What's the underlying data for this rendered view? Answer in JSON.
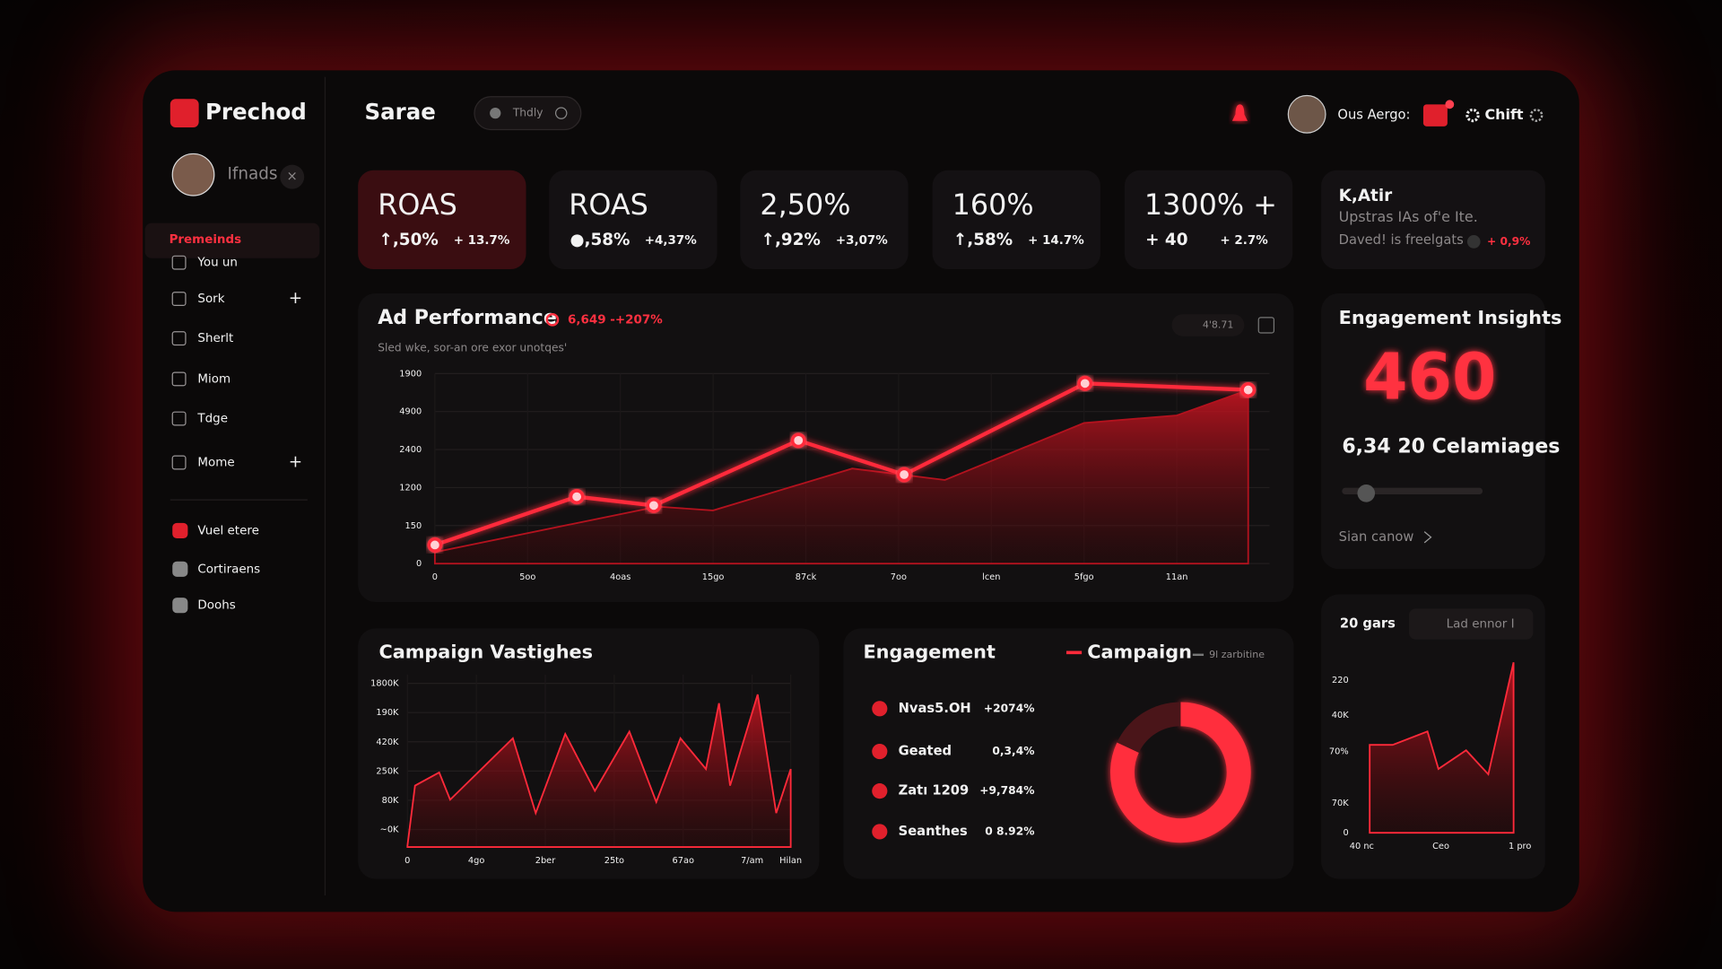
{
  "brand": {
    "name": "Prechod"
  },
  "user": {
    "name": "Ifnads"
  },
  "sidebar": {
    "section": "Premeinds",
    "items": [
      "You un",
      "Sork",
      "Sherlt",
      "Miom",
      "Tdge",
      "Mome"
    ],
    "secondary": [
      "Vuel etere",
      "Cortiraens",
      "Doohs"
    ]
  },
  "header": {
    "title": "Sarae",
    "search": "Thdly",
    "account": "Ous Aergo:",
    "switch": "Chift"
  },
  "kpis": [
    {
      "value": "ROAS",
      "change": "↑,50%",
      "delta": "+ 13.7%",
      "color": "#ff3344",
      "highlight": true
    },
    {
      "value": "ROAS",
      "change": "●,58%",
      "delta": "+4,37%",
      "color": "#2ecc71"
    },
    {
      "value": "2,50%",
      "change": "↑,92%",
      "delta": "+3,07%",
      "color": "#ff3344"
    },
    {
      "value": "160%",
      "change": "↑,58%",
      "delta": "+ 14.7%",
      "color": "#ff3344"
    },
    {
      "value": "1300% +",
      "change": "+ 40",
      "delta": "+ 2.7%",
      "color": "#2ecc71"
    }
  ],
  "kpi_note": {
    "title": "K,Atir",
    "line1": "Upstras IAs of'e Ite.",
    "line2": "Daved! is freelgats",
    "delta": "+ 0,9%"
  },
  "ad_performance": {
    "title": "Ad Performance",
    "stat": "6,649 -+207%",
    "subtitle": "Sled wke, sor-an ore exor unotqes'",
    "control": "4'8.71",
    "type": "line",
    "grid": true,
    "xlim": [
      0,
      9
    ],
    "xticks": [
      0,
      {
        "value": 1,
        "label": "5oo"
      },
      {
        "value": 2,
        "label": "4oas"
      },
      {
        "value": 3,
        "label": "15go"
      },
      {
        "value": 4,
        "label": "87ck"
      },
      {
        "value": 5,
        "label": "7oo"
      },
      {
        "value": 6,
        "label": "lcen"
      },
      {
        "value": 7,
        "label": "5fgo"
      },
      {
        "value": 8,
        "label": "11an"
      }
    ],
    "ylim": [
      0,
      5
    ],
    "yticks": [
      0,
      {
        "value": 1,
        "label": "150"
      },
      {
        "value": 2,
        "label": "1200"
      },
      {
        "value": 3,
        "label": "2400"
      },
      {
        "value": 4,
        "label": "4900"
      },
      {
        "value": 5,
        "label": "1900"
      }
    ],
    "series": [
      {
        "color": "#b3121e",
        "area": true,
        "x": [
          0,
          2.4,
          3,
          4.5,
          5.5,
          7,
          8,
          8.77
        ],
        "values": [
          0.3,
          1.5,
          1.4,
          2.5,
          2.2,
          3.7,
          3.9,
          4.57
        ]
      },
      {
        "color": "#ff2a3a",
        "markers": true,
        "x": [
          0,
          1.53,
          2.36,
          3.92,
          5.06,
          7.01,
          8.77
        ],
        "values": [
          0.49,
          1.76,
          1.53,
          3.24,
          2.34,
          4.74,
          4.57
        ]
      }
    ]
  },
  "insights": {
    "title": "Engagement Insights",
    "value": "460",
    "detail": "6,34 20 Celamiages",
    "link": "Sian canow"
  },
  "campaign": {
    "title": "Campaign Vastighes",
    "type": "area",
    "grid": true,
    "xlim": [
      0,
      5.56
    ],
    "xticks": [
      0,
      {
        "value": 1,
        "label": "4go"
      },
      {
        "value": 2,
        "label": "2ber"
      },
      {
        "value": 3,
        "label": "25to"
      },
      {
        "value": 4,
        "label": "67ao"
      },
      {
        "value": 5,
        "label": "7/am"
      },
      {
        "value": 5.56,
        "label": "Hilan"
      }
    ],
    "ylim": [
      -0.6,
      5.3
    ],
    "yticks": [
      {
        "value": 0,
        "label": "~0K"
      },
      {
        "value": 1,
        "label": "80K"
      },
      {
        "value": 2,
        "label": "250K"
      },
      {
        "value": 3,
        "label": "420K"
      },
      {
        "value": 4,
        "label": "190K"
      },
      {
        "value": 5,
        "label": "1800K"
      }
    ],
    "series": [
      {
        "color": "#ff2a3a",
        "area": true,
        "x": [
          0,
          0.11,
          0.46,
          0.62,
          1.53,
          1.86,
          2.29,
          2.72,
          3.22,
          3.61,
          3.96,
          4.33,
          4.52,
          4.68,
          5.08,
          5.35,
          5.56
        ],
        "values": [
          -0.56,
          1.5,
          1.95,
          1.02,
          3.12,
          0.56,
          3.27,
          1.32,
          3.35,
          0.94,
          3.12,
          2.07,
          4.32,
          1.5,
          4.62,
          0.56,
          2.07
        ]
      }
    ]
  },
  "engagement": {
    "title": "Engagement",
    "legend": "Campaign",
    "legend_secondary": "9l zarbitine",
    "rows": [
      {
        "label": "Nvas5.OH",
        "value": "+2074%",
        "color": "#2ecc71"
      },
      {
        "label": "Geated",
        "value": "0,3,4%",
        "color": "#ff3344"
      },
      {
        "label": "Zatı 1209",
        "value": "+9,784%",
        "color": "#2ecc71"
      },
      {
        "label": "Seanthes",
        "value": "0 8.92%",
        "color": "#ff3344"
      }
    ],
    "donut": {
      "type": "pie",
      "values": [
        82,
        18
      ],
      "colors": [
        "#ff2d3d",
        "#4a1519"
      ]
    }
  },
  "trend": {
    "title": "20 gars",
    "button": "Lad ennor I",
    "type": "area",
    "grid": false,
    "xlim": [
      0,
      2
    ],
    "xticks": [
      {
        "value": 0,
        "label": "40 nc"
      },
      {
        "value": 1,
        "label": "Ceo"
      },
      {
        "value": 2,
        "label": "1 pro"
      }
    ],
    "ylim": [
      0,
      4.6
    ],
    "yticks": [
      0,
      {
        "value": 0.78,
        "label": "70K"
      },
      {
        "value": 2.13,
        "label": "70%"
      },
      {
        "value": 3.08,
        "label": "40K"
      },
      {
        "value": 4,
        "label": "220"
      }
    ],
    "series": [
      {
        "color": "#ff2a3a",
        "area": true,
        "x": [
          0.1,
          0.39,
          0.83,
          0.97,
          1.32,
          1.6,
          1.92
        ],
        "values": [
          2.3,
          2.3,
          2.65,
          1.67,
          2.16,
          1.53,
          4.46
        ]
      }
    ]
  }
}
